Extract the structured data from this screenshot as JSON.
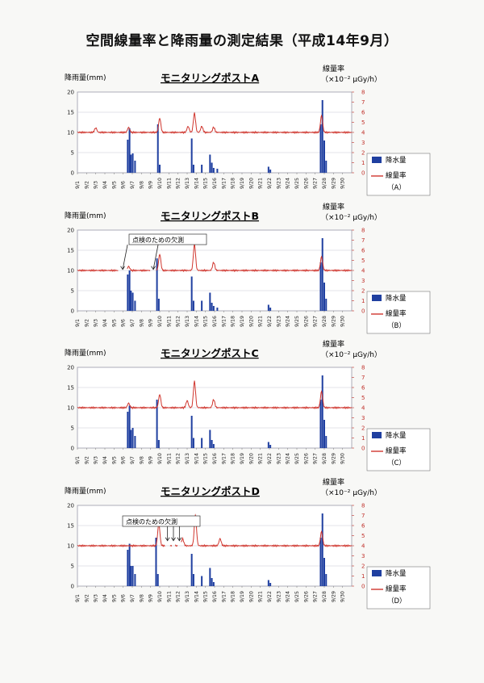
{
  "page": {
    "title": "空間線量率と降雨量の測定結果（平成14年9月）"
  },
  "common": {
    "left_axis_label": "降雨量(mm)",
    "right_axis_label_1": "線量率",
    "right_axis_label_2": "（×10⁻² μGy/h）",
    "legend_rain": "降水量",
    "legend_dose": "線量率",
    "missing_note": "点検のための欠測",
    "colors": {
      "rain": "#1f3fa0",
      "dose": "#d0362e",
      "grid": "#c8c8d4",
      "rtick": "#c0302a"
    }
  },
  "chart_data": [
    {
      "type": "bar+line",
      "title": "モニタリングポストA",
      "legend_post": "（A）",
      "x": [
        "9/1",
        "9/2",
        "9/3",
        "9/4",
        "9/5",
        "9/6",
        "9/7",
        "9/8",
        "9/9",
        "9/10",
        "9/11",
        "9/12",
        "9/13",
        "9/14",
        "9/15",
        "9/16",
        "9/17",
        "9/18",
        "9/19",
        "9/20",
        "9/21",
        "9/22",
        "9/23",
        "9/24",
        "9/25",
        "9/26",
        "9/27",
        "9/28",
        "9/29",
        "9/30"
      ],
      "ylim_left": [
        0,
        20
      ],
      "yticks_left": [
        0,
        5,
        10,
        15,
        20
      ],
      "ylim_right": [
        0,
        8
      ],
      "yticks_right": [
        0,
        1,
        2,
        3,
        4,
        5,
        6,
        7,
        8
      ],
      "rain": [
        [
          5.5,
          8.2
        ],
        [
          5.7,
          11
        ],
        [
          5.85,
          4.5
        ],
        [
          6.05,
          4.8
        ],
        [
          6.3,
          3
        ],
        [
          8.8,
          12
        ],
        [
          9.0,
          2
        ],
        [
          12.5,
          8.5
        ],
        [
          12.7,
          2
        ],
        [
          13.6,
          2
        ],
        [
          14.5,
          4.5
        ],
        [
          14.7,
          2.5
        ],
        [
          14.9,
          1.2
        ],
        [
          15.3,
          1
        ],
        [
          20.9,
          1.5
        ],
        [
          21.1,
          0.8
        ],
        [
          26.6,
          12
        ],
        [
          26.8,
          18
        ],
        [
          27.0,
          8
        ],
        [
          27.2,
          3
        ]
      ],
      "dose_base": 4.0,
      "dose_peaks": [
        [
          2.0,
          0.45
        ],
        [
          5.6,
          0.5
        ],
        [
          9.0,
          1.4
        ],
        [
          12.1,
          0.6
        ],
        [
          12.8,
          1.9
        ],
        [
          13.6,
          0.6
        ],
        [
          14.9,
          0.5
        ],
        [
          26.7,
          1.65
        ]
      ],
      "missing": []
    },
    {
      "type": "bar+line",
      "title": "モニタリングポストB",
      "legend_post": "（B）",
      "x": [
        "9/1",
        "9/2",
        "9/3",
        "9/4",
        "9/5",
        "9/6",
        "9/7",
        "9/8",
        "9/9",
        "9/10",
        "9/11",
        "9/12",
        "9/13",
        "9/14",
        "9/15",
        "9/16",
        "9/17",
        "9/18",
        "9/19",
        "9/20",
        "9/21",
        "9/22",
        "9/23",
        "9/24",
        "9/25",
        "9/26",
        "9/27",
        "9/28",
        "9/29",
        "9/30"
      ],
      "ylim_left": [
        0,
        20
      ],
      "yticks_left": [
        0,
        5,
        10,
        15,
        20
      ],
      "ylim_right": [
        0,
        8
      ],
      "yticks_right": [
        0,
        1,
        2,
        3,
        4,
        5,
        6,
        7,
        8
      ],
      "rain": [
        [
          5.5,
          9
        ],
        [
          5.7,
          10
        ],
        [
          5.85,
          5
        ],
        [
          6.05,
          4.5
        ],
        [
          6.3,
          2.5
        ],
        [
          8.7,
          13
        ],
        [
          8.9,
          3
        ],
        [
          12.5,
          8.5
        ],
        [
          12.7,
          2.5
        ],
        [
          13.6,
          2.5
        ],
        [
          14.5,
          4.5
        ],
        [
          14.7,
          2
        ],
        [
          14.9,
          1.2
        ],
        [
          15.3,
          0.8
        ],
        [
          20.9,
          1.5
        ],
        [
          21.1,
          0.8
        ],
        [
          26.6,
          12
        ],
        [
          26.8,
          18
        ],
        [
          27.0,
          7
        ],
        [
          27.2,
          3
        ]
      ],
      "dose_base": 4.0,
      "dose_peaks": [
        [
          5.6,
          0.4
        ],
        [
          9.0,
          1.6
        ],
        [
          12.8,
          2.6
        ],
        [
          14.9,
          0.8
        ],
        [
          26.7,
          1.35
        ]
      ],
      "missing": [
        [
          4.5,
          5.4
        ],
        [
          8.0,
          8.6
        ]
      ]
    },
    {
      "type": "bar+line",
      "title": "モニタリングポストC",
      "legend_post": "（C）",
      "x": [
        "9/1",
        "9/2",
        "9/3",
        "9/4",
        "9/5",
        "9/6",
        "9/7",
        "9/8",
        "9/9",
        "9/10",
        "9/11",
        "9/12",
        "9/13",
        "9/14",
        "9/15",
        "9/16",
        "9/17",
        "9/18",
        "9/19",
        "9/20",
        "9/21",
        "9/22",
        "9/23",
        "9/24",
        "9/25",
        "9/26",
        "9/27",
        "9/28",
        "9/29",
        "9/30"
      ],
      "ylim_left": [
        0,
        20
      ],
      "yticks_left": [
        0,
        5,
        10,
        15,
        20
      ],
      "ylim_right": [
        0,
        8
      ],
      "yticks_right": [
        0,
        1,
        2,
        3,
        4,
        5,
        6,
        7,
        8
      ],
      "rain": [
        [
          5.5,
          9
        ],
        [
          5.7,
          10.5
        ],
        [
          5.85,
          4.5
        ],
        [
          6.05,
          5
        ],
        [
          6.3,
          3
        ],
        [
          8.7,
          12
        ],
        [
          8.9,
          2
        ],
        [
          12.5,
          8
        ],
        [
          12.7,
          2.5
        ],
        [
          13.6,
          2.5
        ],
        [
          14.5,
          4.5
        ],
        [
          14.7,
          2
        ],
        [
          14.9,
          1
        ],
        [
          20.9,
          1.5
        ],
        [
          21.1,
          0.8
        ],
        [
          26.6,
          12
        ],
        [
          26.8,
          18
        ],
        [
          27.0,
          7
        ],
        [
          27.2,
          3
        ]
      ],
      "dose_base": 4.0,
      "dose_peaks": [
        [
          5.6,
          0.45
        ],
        [
          9.0,
          1.3
        ],
        [
          12.0,
          0.7
        ],
        [
          12.8,
          2.6
        ],
        [
          14.9,
          0.8
        ],
        [
          26.7,
          1.6
        ]
      ],
      "missing": []
    },
    {
      "type": "bar+line",
      "title": "モニタリングポストD",
      "legend_post": "（D）",
      "x": [
        "9/1",
        "9/2",
        "9/3",
        "9/4",
        "9/5",
        "9/6",
        "9/7",
        "9/8",
        "9/9",
        "9/10",
        "9/11",
        "9/12",
        "9/13",
        "9/14",
        "9/15",
        "9/16",
        "9/17",
        "9/18",
        "9/19",
        "9/20",
        "9/21",
        "9/22",
        "9/23",
        "9/24",
        "9/25",
        "9/26",
        "9/27",
        "9/28",
        "9/29",
        "9/30"
      ],
      "ylim_left": [
        0,
        20
      ],
      "yticks_left": [
        0,
        5,
        10,
        15,
        20
      ],
      "ylim_right": [
        0,
        8
      ],
      "yticks_right": [
        0,
        1,
        2,
        3,
        4,
        5,
        6,
        7,
        8
      ],
      "rain": [
        [
          5.5,
          9
        ],
        [
          5.7,
          10.5
        ],
        [
          5.85,
          5
        ],
        [
          6.05,
          5
        ],
        [
          6.3,
          3
        ],
        [
          8.6,
          12
        ],
        [
          8.8,
          3
        ],
        [
          12.5,
          8
        ],
        [
          12.7,
          3
        ],
        [
          13.6,
          2.5
        ],
        [
          14.5,
          4.5
        ],
        [
          14.7,
          2
        ],
        [
          14.9,
          1
        ],
        [
          20.9,
          1.5
        ],
        [
          21.1,
          0.8
        ],
        [
          26.6,
          12
        ],
        [
          26.8,
          18
        ],
        [
          27.0,
          7
        ],
        [
          27.2,
          3
        ]
      ],
      "dose_base": 4.0,
      "dose_peaks": [
        [
          8.9,
          2.2
        ],
        [
          11.5,
          0.7
        ],
        [
          12.9,
          3.1
        ],
        [
          15.6,
          0.7
        ],
        [
          26.7,
          1.4
        ]
      ],
      "missing": [
        [
          9.6,
          10.1
        ],
        [
          10.3,
          10.7
        ],
        [
          11.0,
          11.3
        ]
      ]
    }
  ]
}
